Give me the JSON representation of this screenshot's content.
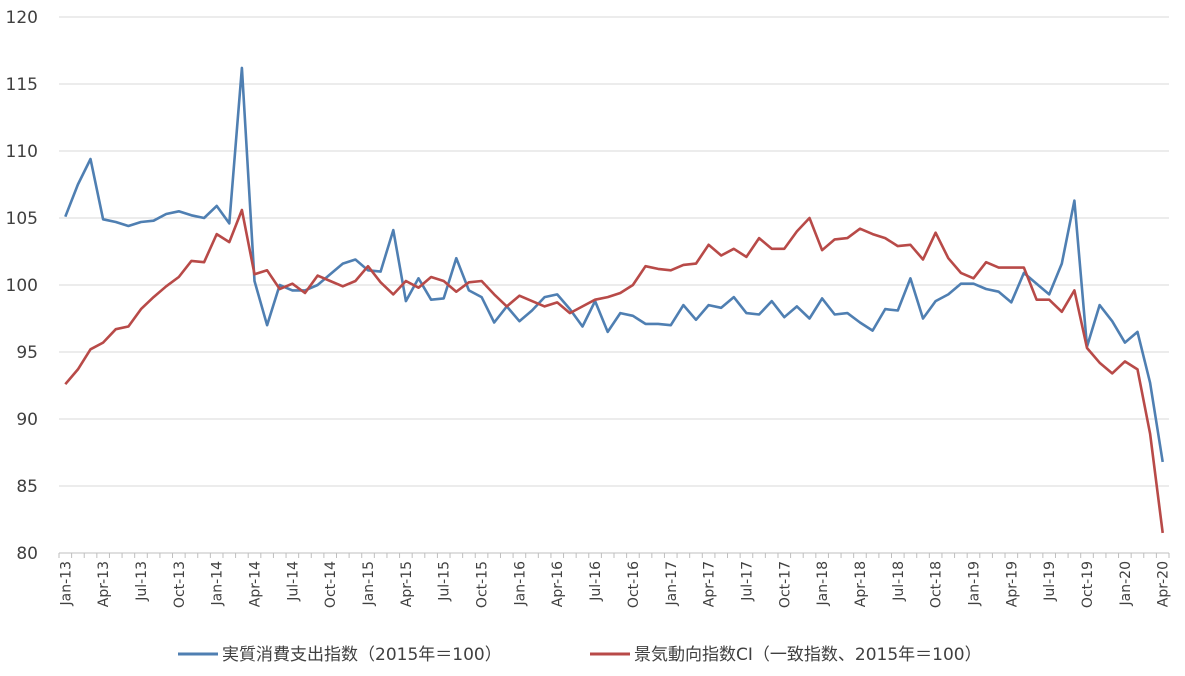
{
  "chart_data": {
    "type": "line",
    "title": "",
    "xlabel": "",
    "ylabel": "",
    "ylim": [
      80,
      120
    ],
    "yticks": [
      80,
      85,
      90,
      95,
      100,
      105,
      110,
      115,
      120
    ],
    "grid": "horizontal",
    "legend_position": "bottom",
    "x": [
      "Jan-13",
      "Feb-13",
      "Mar-13",
      "Apr-13",
      "May-13",
      "Jun-13",
      "Jul-13",
      "Aug-13",
      "Sep-13",
      "Oct-13",
      "Nov-13",
      "Dec-13",
      "Jan-14",
      "Feb-14",
      "Mar-14",
      "Apr-14",
      "May-14",
      "Jun-14",
      "Jul-14",
      "Aug-14",
      "Sep-14",
      "Oct-14",
      "Nov-14",
      "Dec-14",
      "Jan-15",
      "Feb-15",
      "Mar-15",
      "Apr-15",
      "May-15",
      "Jun-15",
      "Jul-15",
      "Aug-15",
      "Sep-15",
      "Oct-15",
      "Nov-15",
      "Dec-15",
      "Jan-16",
      "Feb-16",
      "Mar-16",
      "Apr-16",
      "May-16",
      "Jun-16",
      "Jul-16",
      "Aug-16",
      "Sep-16",
      "Oct-16",
      "Nov-16",
      "Dec-16",
      "Jan-17",
      "Feb-17",
      "Mar-17",
      "Apr-17",
      "May-17",
      "Jun-17",
      "Jul-17",
      "Aug-17",
      "Sep-17",
      "Oct-17",
      "Nov-17",
      "Dec-17",
      "Jan-18",
      "Feb-18",
      "Mar-18",
      "Apr-18",
      "May-18",
      "Jun-18",
      "Jul-18",
      "Aug-18",
      "Sep-18",
      "Oct-18",
      "Nov-18",
      "Dec-18",
      "Jan-19",
      "Feb-19",
      "Mar-19",
      "Apr-19",
      "May-19",
      "Jun-19",
      "Jul-19",
      "Aug-19",
      "Sep-19",
      "Oct-19",
      "Nov-19",
      "Dec-19",
      "Jan-20",
      "Feb-20",
      "Mar-20",
      "Apr-20"
    ],
    "x_tick_labels": [
      "Jan-13",
      "Apr-13",
      "Jul-13",
      "Oct-13",
      "Jan-14",
      "Apr-14",
      "Jul-14",
      "Oct-14",
      "Jan-15",
      "Apr-15",
      "Jul-15",
      "Oct-15",
      "Jan-16",
      "Apr-16",
      "Jul-16",
      "Oct-16",
      "Jan-17",
      "Apr-17",
      "Jul-17",
      "Oct-17",
      "Jan-18",
      "Apr-18",
      "Jul-18",
      "Oct-18",
      "Jan-19",
      "Apr-19",
      "Jul-19",
      "Oct-19",
      "Jan-20",
      "Apr-20"
    ],
    "series": [
      {
        "name": "実質消費支出指数（2015年＝100）",
        "color": "#4f7fb2",
        "values": [
          105.1,
          107.5,
          109.4,
          104.9,
          104.7,
          104.4,
          104.7,
          104.8,
          105.3,
          105.5,
          105.2,
          105.0,
          105.9,
          104.6,
          116.2,
          100.3,
          97.0,
          100.0,
          99.6,
          99.6,
          100.0,
          100.8,
          101.6,
          101.9,
          101.1,
          101.0,
          104.1,
          98.8,
          100.5,
          98.9,
          99.0,
          102.0,
          99.6,
          99.1,
          97.2,
          98.4,
          97.3,
          98.1,
          99.1,
          99.3,
          98.2,
          96.9,
          98.8,
          96.5,
          97.9,
          97.7,
          97.1,
          97.1,
          97.0,
          98.5,
          97.4,
          98.5,
          98.3,
          99.1,
          97.9,
          97.8,
          98.8,
          97.6,
          98.4,
          97.5,
          99.0,
          97.8,
          97.9,
          97.2,
          96.6,
          98.2,
          98.1,
          100.5,
          97.5,
          98.8,
          99.3,
          100.1,
          100.1,
          99.7,
          99.5,
          98.7,
          100.9,
          100.1,
          99.3,
          101.6,
          106.3,
          95.4,
          98.5,
          97.3,
          95.7,
          96.5,
          92.7,
          86.8
        ]
      },
      {
        "name": "景気動向指数CI（一致指数、2015年＝100）",
        "color": "#b84a48",
        "values": [
          92.6,
          93.7,
          95.2,
          95.7,
          96.7,
          96.9,
          98.2,
          99.1,
          99.9,
          100.6,
          101.8,
          101.7,
          103.8,
          103.2,
          105.6,
          100.8,
          101.1,
          99.7,
          100.1,
          99.4,
          100.7,
          100.3,
          99.9,
          100.3,
          101.4,
          100.2,
          99.3,
          100.3,
          99.8,
          100.6,
          100.3,
          99.5,
          100.2,
          100.3,
          99.3,
          98.4,
          99.2,
          98.8,
          98.4,
          98.7,
          97.9,
          98.4,
          98.9,
          99.1,
          99.4,
          100.0,
          101.4,
          101.2,
          101.1,
          101.5,
          101.6,
          103.0,
          102.2,
          102.7,
          102.1,
          103.5,
          102.7,
          102.7,
          104.0,
          105.0,
          102.6,
          103.4,
          103.5,
          104.2,
          103.8,
          103.5,
          102.9,
          103.0,
          101.9,
          103.9,
          102.0,
          100.9,
          100.5,
          101.7,
          101.3,
          101.3,
          101.3,
          98.9,
          98.9,
          98.0,
          99.6,
          95.3,
          94.2,
          93.4,
          94.3,
          93.7,
          88.9,
          81.5
        ]
      }
    ]
  }
}
